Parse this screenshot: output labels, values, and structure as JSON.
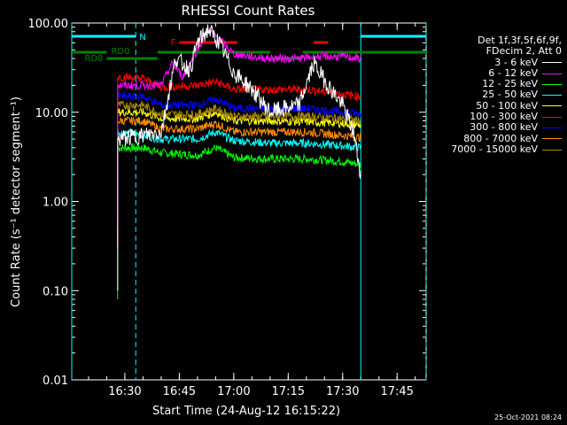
{
  "chart_data": {
    "type": "line",
    "title": "RHESSI Count Rates",
    "xlabel": "Start Time (24-Aug-12 16:15:22)",
    "ylabel": "Count Rate (s⁻¹ detector segment⁻¹)",
    "yscale": "log",
    "ylim": [
      0.01,
      100
    ],
    "xlim": [
      "16:15:22",
      "17:53:00"
    ],
    "y_ticks": [
      "0.01",
      "0.10",
      "1.00",
      "10.00",
      "100.00"
    ],
    "x_ticks": [
      "16:30",
      "16:45",
      "17:00",
      "17:15",
      "17:30",
      "17:45"
    ],
    "legend_header": [
      "Det 1f,3f,5f,6f,9f,",
      "FDecim 2, Att 0"
    ],
    "series": [
      {
        "name": "3 - 6 keV",
        "color": "#ffffff",
        "points": [
          [
            "16:28",
            0.1
          ],
          [
            "16:28",
            5.0
          ],
          [
            "16:35",
            5.5
          ],
          [
            "16:40",
            6.0
          ],
          [
            "16:44",
            40
          ],
          [
            "16:48",
            30
          ],
          [
            "16:50",
            60
          ],
          [
            "16:53",
            85
          ],
          [
            "16:56",
            60
          ],
          [
            "17:00",
            28
          ],
          [
            "17:05",
            18
          ],
          [
            "17:10",
            10
          ],
          [
            "17:18",
            12
          ],
          [
            "17:22",
            35
          ],
          [
            "17:26",
            20
          ],
          [
            "17:30",
            12
          ],
          [
            "17:33",
            6
          ],
          [
            "17:35",
            2
          ]
        ]
      },
      {
        "name": "6 - 12 keV",
        "color": "#ff00ff",
        "points": [
          [
            "16:28",
            0.3
          ],
          [
            "16:28",
            20
          ],
          [
            "16:35",
            20
          ],
          [
            "16:40",
            20
          ],
          [
            "16:43",
            35
          ],
          [
            "16:46",
            25
          ],
          [
            "16:50",
            50
          ],
          [
            "16:53",
            85
          ],
          [
            "16:57",
            60
          ],
          [
            "17:00",
            45
          ],
          [
            "17:05",
            42
          ],
          [
            "17:10",
            40
          ],
          [
            "17:18",
            40
          ],
          [
            "17:22",
            42
          ],
          [
            "17:30",
            42
          ],
          [
            "17:35",
            40
          ]
        ]
      },
      {
        "name": "12 - 25 keV",
        "color": "#00ff00",
        "points": [
          [
            "16:28",
            0.08
          ],
          [
            "16:28",
            4.0
          ],
          [
            "16:35",
            4.0
          ],
          [
            "16:40",
            3.5
          ],
          [
            "16:50",
            3.3
          ],
          [
            "16:55",
            4.0
          ],
          [
            "17:00",
            3.1
          ],
          [
            "17:10",
            3.0
          ],
          [
            "17:20",
            3.0
          ],
          [
            "17:30",
            2.8
          ],
          [
            "17:35",
            2.6
          ]
        ]
      },
      {
        "name": "25 - 50 keV",
        "color": "#00ffff",
        "points": [
          [
            "16:28",
            0.3
          ],
          [
            "16:28",
            6.0
          ],
          [
            "16:35",
            5.5
          ],
          [
            "16:40",
            5.0
          ],
          [
            "16:50",
            5.0
          ],
          [
            "16:55",
            6.0
          ],
          [
            "17:00",
            4.8
          ],
          [
            "17:10",
            4.5
          ],
          [
            "17:20",
            4.5
          ],
          [
            "17:30",
            4.2
          ],
          [
            "17:35",
            4.0
          ]
        ]
      },
      {
        "name": "50 - 100 keV",
        "color": "#ffff00",
        "points": [
          [
            "16:28",
            0.4
          ],
          [
            "16:28",
            10
          ],
          [
            "16:35",
            10
          ],
          [
            "16:40",
            8.5
          ],
          [
            "16:50",
            8.5
          ],
          [
            "16:55",
            10
          ],
          [
            "17:00",
            8.0
          ],
          [
            "17:10",
            8.0
          ],
          [
            "17:20",
            7.8
          ],
          [
            "17:30",
            7.5
          ],
          [
            "17:35",
            7.2
          ]
        ]
      },
      {
        "name": "100 - 300 keV",
        "color": "#ff0000",
        "points": [
          [
            "16:28",
            0.5
          ],
          [
            "16:28",
            25
          ],
          [
            "16:35",
            24
          ],
          [
            "16:40",
            19
          ],
          [
            "16:50",
            20
          ],
          [
            "16:55",
            22
          ],
          [
            "17:00",
            18
          ],
          [
            "17:10",
            18
          ],
          [
            "17:20",
            18
          ],
          [
            "17:30",
            16
          ],
          [
            "17:35",
            15
          ]
        ]
      },
      {
        "name": "300 - 800 keV",
        "color": "#0000ff",
        "points": [
          [
            "16:28",
            0.6
          ],
          [
            "16:28",
            15
          ],
          [
            "16:35",
            15
          ],
          [
            "16:40",
            12
          ],
          [
            "16:50",
            12
          ],
          [
            "16:55",
            14
          ],
          [
            "17:00",
            11
          ],
          [
            "17:10",
            11
          ],
          [
            "17:20",
            11
          ],
          [
            "17:30",
            10
          ],
          [
            "17:35",
            9.5
          ]
        ]
      },
      {
        "name": "800 - 7000 keV",
        "color": "#ff8c00",
        "points": [
          [
            "16:28",
            0.3
          ],
          [
            "16:28",
            8.0
          ],
          [
            "16:35",
            8.0
          ],
          [
            "16:40",
            6.5
          ],
          [
            "16:50",
            6.5
          ],
          [
            "16:55",
            7.5
          ],
          [
            "17:00",
            6.0
          ],
          [
            "17:10",
            6.0
          ],
          [
            "17:20",
            6.0
          ],
          [
            "17:30",
            5.5
          ],
          [
            "17:35",
            5.2
          ]
        ]
      },
      {
        "name": "7000 - 15000 keV",
        "color": "#aa8800",
        "points": [
          [
            "16:28",
            0.5
          ],
          [
            "16:28",
            12
          ],
          [
            "16:35",
            12
          ],
          [
            "16:40",
            9.5
          ],
          [
            "16:50",
            9.5
          ],
          [
            "16:55",
            11
          ],
          [
            "17:00",
            9.0
          ],
          [
            "17:10",
            9.0
          ],
          [
            "17:20",
            9.0
          ],
          [
            "17:30",
            8.5
          ],
          [
            "17:35",
            8.0
          ]
        ]
      }
    ],
    "annotations": {
      "N": {
        "label": "N",
        "color": "#00ffff",
        "intervals": [
          [
            "16:15:22",
            "16:33"
          ],
          [
            "17:35",
            "17:53"
          ]
        ],
        "boundaries": [
          "16:15:22",
          "16:33",
          "17:35",
          "17:53"
        ]
      },
      "F": {
        "label": "F",
        "color": "#ff0000",
        "intervals": [
          [
            "16:45",
            "17:01"
          ],
          [
            "17:22",
            "17:26"
          ]
        ]
      },
      "RD0": {
        "label": "RD0",
        "color": "#008000",
        "intervals": [
          [
            "16:15:22",
            "16:25"
          ],
          [
            "16:39",
            "17:10"
          ],
          [
            "17:19",
            "17:53"
          ]
        ]
      },
      "RD8": {
        "label": "RD8",
        "color": "#008000",
        "intervals": [
          [
            "16:25",
            "16:39"
          ],
          [
            "17:10",
            "17:19"
          ]
        ]
      }
    }
  },
  "footer_date": "25-Oct-2021 08:24"
}
